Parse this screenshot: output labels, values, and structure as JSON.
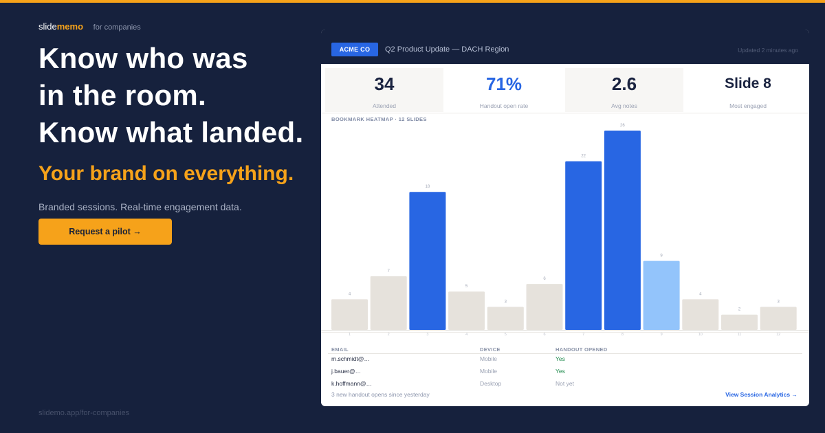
{
  "colors": {
    "background": "#16213d",
    "accent": "#f6a21a",
    "blue": "#2866e3",
    "light_blue": "#93c4fb",
    "neutral_bar": "#e6e2dc",
    "positive": "#1e8a4c"
  },
  "brand": {
    "name_part1": "slide",
    "name_part2": "memo",
    "tag": "for companies"
  },
  "hero": {
    "headline": [
      "Know who was",
      "in the room.",
      "Know what landed."
    ],
    "tagline": "Your brand on everything.",
    "subtitle": "Branded sessions. Real-time engagement data.",
    "cta_label": "Request a pilot →"
  },
  "footer_url": "slidemo.app/for-companies",
  "dashboard": {
    "company_chip": "ACME CO",
    "session_title": "Q2 Product Update — DACH Region",
    "updated": "Updated 2 minutes ago",
    "stats": [
      {
        "value": "34",
        "label": "Attended"
      },
      {
        "value": "71%",
        "label": "Handout open rate"
      },
      {
        "value": "2.6",
        "label": "Avg notes"
      },
      {
        "value": "Slide 8",
        "label": "Most engaged"
      }
    ],
    "heatmap_label": "BOOKMARK HEATMAP · 12 SLIDES",
    "table": {
      "headers": {
        "email": "EMAIL",
        "device": "DEVICE",
        "opened": "HANDOUT OPENED"
      },
      "rows": [
        {
          "email": "m.schmidt@…",
          "device": "Mobile",
          "opened": "Yes"
        },
        {
          "email": "j.bauer@…",
          "device": "Mobile",
          "opened": "Yes"
        },
        {
          "email": "k.hoffmann@…",
          "device": "Desktop",
          "opened": "Not yet"
        }
      ]
    },
    "note": "3 new handout opens since yesterday",
    "link_label": "View Session Analytics →"
  },
  "chart_data": {
    "type": "bar",
    "title": "BOOKMARK HEATMAP · 12 SLIDES",
    "categories": [
      "1",
      "2",
      "3",
      "4",
      "5",
      "6",
      "7",
      "8",
      "9",
      "10",
      "11",
      "12"
    ],
    "values": [
      4,
      7,
      18,
      5,
      3,
      6,
      22,
      26,
      9,
      4,
      2,
      3
    ],
    "bar_colors": [
      "neutral",
      "neutral",
      "blue",
      "neutral",
      "neutral",
      "neutral",
      "blue",
      "blue",
      "light_blue",
      "neutral",
      "neutral",
      "neutral"
    ],
    "ylim": [
      0,
      26
    ],
    "grid": false,
    "legend": "none"
  }
}
